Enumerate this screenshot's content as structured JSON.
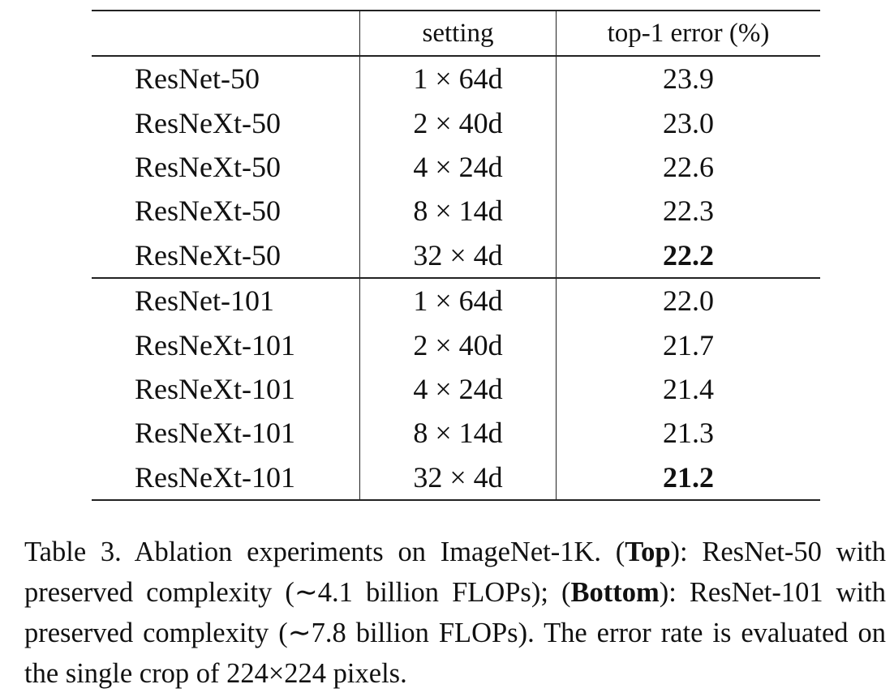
{
  "table": {
    "header": [
      "setting",
      "top-1 error (%)"
    ],
    "groups": [
      {
        "rows": [
          [
            "ResNet-50",
            "1 × 64d",
            "23.9"
          ],
          [
            "ResNeXt-50",
            "2 × 40d",
            "23.0"
          ],
          [
            "ResNeXt-50",
            "4 × 24d",
            "22.6"
          ],
          [
            "ResNeXt-50",
            "8 × 14d",
            "22.3"
          ],
          [
            "ResNeXt-50",
            "32 × 4d",
            "22.2"
          ]
        ]
      },
      {
        "rows": [
          [
            "ResNet-101",
            "1 × 64d",
            "22.0"
          ],
          [
            "ResNeXt-101",
            "2 × 40d",
            "21.7"
          ],
          [
            "ResNeXt-101",
            "4 × 24d",
            "21.4"
          ],
          [
            "ResNeXt-101",
            "8 × 14d",
            "21.3"
          ],
          [
            "ResNeXt-101",
            "32 × 4d",
            "21.2"
          ]
        ]
      }
    ]
  },
  "caption": {
    "parts": [
      "Table 3. Ablation experiments on ImageNet-1K. (",
      "Top",
      "): ResNet-50 with preserved complexity (∼4.1 billion FLOPs); (",
      "Bottom",
      "): ResNet-101 with preserved complexity (∼7.8 billion FLOPs). The error rate is evaluated on the single crop of 224×224 pixels."
    ]
  }
}
